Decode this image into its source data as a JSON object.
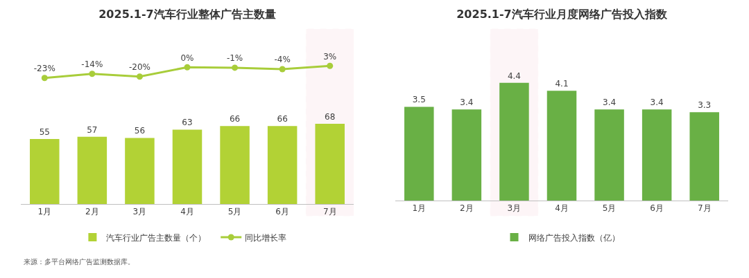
{
  "chart_data": [
    {
      "type": "line",
      "title": "2025.1-7汽车行业整体广告主数量",
      "categories": [
        "1月",
        "2月",
        "3月",
        "4月",
        "5月",
        "6月",
        "7月"
      ],
      "tick_labels": false,
      "series": [
        {
          "name": "同比增长率",
          "color": "#a8cd3a",
          "values": [
            -23,
            -14,
            -20,
            0,
            -1,
            -4,
            3
          ],
          "value_labels": [
            "-23%",
            "-14%",
            "-20%",
            "0%",
            "-1%",
            "-4%",
            "3%"
          ]
        }
      ],
      "bands": [
        {
          "axis": "x",
          "from": "7月",
          "to": "7月",
          "color": "#f2a7b4"
        }
      ],
      "marker": "circle",
      "grid": false,
      "legend": "bottom",
      "annotations": [
        "来源：多平台网络广告监测数据库。"
      ]
    },
    {
      "type": "bar",
      "categories": [
        "1月",
        "2月",
        "3月",
        "4月",
        "5月",
        "6月",
        "7月"
      ],
      "series": [
        {
          "name": "汽车行业广告主数量（个）",
          "color": "#b2d235",
          "values": [
            55,
            57,
            56,
            63,
            66,
            66,
            68
          ],
          "value_labels": [
            "55",
            "57",
            "56",
            "63",
            "66",
            "66",
            "68"
          ]
        }
      ],
      "grid": false,
      "legend": "bottom"
    },
    {
      "type": "bar",
      "title": "2025.1-7汽车行业月度网络广告投入指数",
      "categories": [
        "1月",
        "2月",
        "3月",
        "4月",
        "5月",
        "6月",
        "7月"
      ],
      "series": [
        {
          "name": "网络广告投入指数（亿）",
          "color": "#69b045",
          "values": [
            3.5,
            3.4,
            4.4,
            4.1,
            3.4,
            3.4,
            3.3
          ],
          "value_labels": [
            "3.5",
            "3.4",
            "4.4",
            "4.1",
            "3.4",
            "3.4",
            "3.3"
          ]
        }
      ],
      "bands": [
        {
          "axis": "x",
          "from": "3月",
          "to": "3月",
          "color": "#f2a7b4"
        }
      ],
      "grid": false,
      "legend": "bottom"
    }
  ]
}
